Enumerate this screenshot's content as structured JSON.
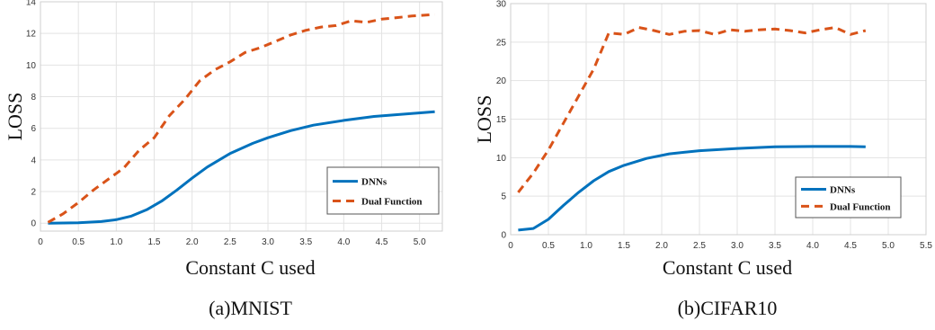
{
  "colors": {
    "dnn": "#0072BD",
    "dual": "#D95319"
  },
  "chart_data": [
    {
      "type": "line",
      "caption": "(a)MNIST",
      "xlabel": "Constant C used",
      "ylabel": "LOSS",
      "xlim": [
        0,
        5.3
      ],
      "ylim": [
        -0.5,
        14
      ],
      "xticks": [
        0,
        0.5,
        1.0,
        1.5,
        2.0,
        2.5,
        3.0,
        3.5,
        4.0,
        4.5,
        5.0
      ],
      "xtick_labels": [
        "0",
        "0.5",
        "1.0",
        "1.5",
        "2.0",
        "2.5",
        "3.0",
        "3.5",
        "4.0",
        "4.5",
        "5.0"
      ],
      "yticks": [
        0,
        2,
        4,
        6,
        8,
        10,
        12,
        14
      ],
      "ytick_labels": [
        "0",
        "2",
        "4",
        "6",
        "8",
        "10",
        "12",
        "14"
      ],
      "grid": true,
      "legend_position": "bottom-right",
      "series": [
        {
          "name": "DNNs",
          "style": "solid",
          "x": [
            0.1,
            0.5,
            0.8,
            1.0,
            1.2,
            1.4,
            1.6,
            1.8,
            2.0,
            2.2,
            2.5,
            2.8,
            3.0,
            3.3,
            3.6,
            4.0,
            4.4,
            4.8,
            5.2
          ],
          "y": [
            0.0,
            0.03,
            0.1,
            0.22,
            0.45,
            0.85,
            1.4,
            2.1,
            2.85,
            3.55,
            4.4,
            5.05,
            5.4,
            5.85,
            6.2,
            6.5,
            6.75,
            6.9,
            7.05
          ]
        },
        {
          "name": "Dual Function",
          "style": "dashed",
          "x": [
            0.1,
            0.3,
            0.5,
            0.7,
            0.9,
            1.1,
            1.3,
            1.5,
            1.7,
            1.9,
            2.1,
            2.3,
            2.5,
            2.7,
            2.9,
            3.1,
            3.3,
            3.5,
            3.7,
            3.9,
            4.1,
            4.3,
            4.5,
            4.7,
            4.9,
            5.2
          ],
          "y": [
            0.05,
            0.6,
            1.3,
            2.1,
            2.8,
            3.5,
            4.6,
            5.4,
            6.8,
            7.8,
            9.0,
            9.7,
            10.2,
            10.8,
            11.1,
            11.5,
            11.9,
            12.2,
            12.4,
            12.5,
            12.8,
            12.7,
            12.9,
            13.0,
            13.1,
            13.2
          ]
        }
      ]
    },
    {
      "type": "line",
      "caption": "(b)CIFAR10",
      "xlabel": "Constant C used",
      "ylabel": "LOSS",
      "xlim": [
        0,
        5.5
      ],
      "ylim": [
        0,
        30
      ],
      "xticks": [
        0,
        0.5,
        1.0,
        1.5,
        2.0,
        2.5,
        3.0,
        3.5,
        4.0,
        4.5,
        5.0,
        5.5
      ],
      "xtick_labels": [
        "0",
        "0.5",
        "1.0",
        "1.5",
        "2.0",
        "2.5",
        "3.0",
        "3.5",
        "4.0",
        "4.5",
        "5.0",
        "5.5"
      ],
      "yticks": [
        0,
        5,
        10,
        15,
        20,
        25,
        30
      ],
      "ytick_labels": [
        "0",
        "5",
        "10",
        "15",
        "20",
        "25",
        "30"
      ],
      "grid": true,
      "legend_position": "bottom-right",
      "series": [
        {
          "name": "DNNs",
          "style": "solid",
          "x": [
            0.1,
            0.3,
            0.5,
            0.7,
            0.9,
            1.1,
            1.3,
            1.5,
            1.8,
            2.1,
            2.5,
            3.0,
            3.5,
            4.0,
            4.5,
            4.7
          ],
          "y": [
            0.6,
            0.8,
            2.0,
            3.8,
            5.5,
            7.0,
            8.2,
            9.0,
            9.9,
            10.5,
            10.9,
            11.2,
            11.4,
            11.45,
            11.45,
            11.4
          ]
        },
        {
          "name": "Dual Function",
          "style": "dashed",
          "x": [
            0.1,
            0.3,
            0.5,
            0.7,
            0.9,
            1.1,
            1.3,
            1.5,
            1.7,
            1.9,
            2.1,
            2.3,
            2.5,
            2.7,
            2.9,
            3.1,
            3.3,
            3.5,
            3.7,
            3.9,
            4.1,
            4.3,
            4.5,
            4.7
          ],
          "y": [
            5.5,
            8.0,
            11.0,
            14.5,
            18.0,
            21.5,
            26.2,
            26.0,
            26.9,
            26.5,
            26.0,
            26.4,
            26.5,
            26.0,
            26.6,
            26.4,
            26.6,
            26.7,
            26.5,
            26.2,
            26.6,
            26.9,
            26.0,
            26.5
          ]
        }
      ]
    }
  ]
}
